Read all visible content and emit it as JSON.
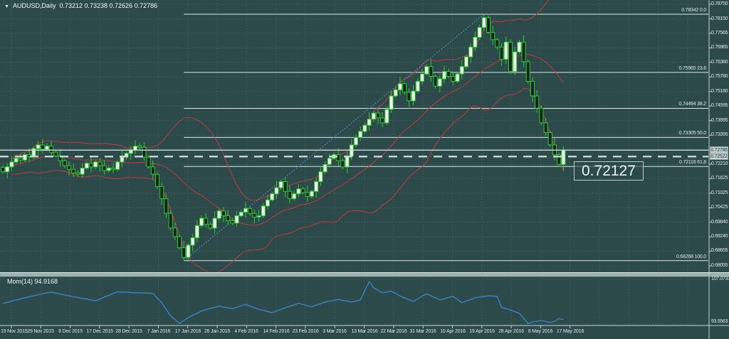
{
  "window": {
    "collapse_icon": "▼",
    "symbol_label": "AUDUSD,Daily",
    "ohlc_text": "0.73212 0.73238 0.72626 0.72786"
  },
  "colors": {
    "background": "#2c4a4a",
    "grid": "#466663",
    "candle_line": "#2fcc2f",
    "bull_fill": "#f4fff4",
    "bear_fill": "#0e2222",
    "band": "#c13b3b",
    "fib_line": "#dde8e8",
    "trend": "#4f9bca",
    "momentum_line": "#3a80bd",
    "silver": "#c5d2d2",
    "axis_text": "#dce8e8"
  },
  "chart_data": {
    "type": "candlestick",
    "title": "AUDUSD,Daily",
    "last_ohlc": {
      "open": "0.73212",
      "high": "0.73238",
      "low": "0.72626",
      "close": "0.72786"
    },
    "big_price_label": {
      "text": "0.72127",
      "price": 0.72127
    },
    "y_axis": {
      "ticks": [
        {
          "label": "0.78750",
          "price": 0.7875
        },
        {
          "label": "0.78150",
          "price": 0.7815
        },
        {
          "label": "0.77565",
          "price": 0.77565
        },
        {
          "label": "0.76965",
          "price": 0.76965
        },
        {
          "label": "0.76380",
          "price": 0.7638
        },
        {
          "label": "0.75780",
          "price": 0.7578
        },
        {
          "label": "0.75180",
          "price": 0.7518
        },
        {
          "label": "0.74595",
          "price": 0.74595
        },
        {
          "label": "0.73995",
          "price": 0.73995
        },
        {
          "label": "0.73395",
          "price": 0.73395
        },
        {
          "label": "0.72210",
          "price": 0.7221
        },
        {
          "label": "0.71625",
          "price": 0.71625
        },
        {
          "label": "0.71025",
          "price": 0.71025
        },
        {
          "label": "0.70425",
          "price": 0.70425
        },
        {
          "label": "0.69840",
          "price": 0.6984
        },
        {
          "label": "0.69240",
          "price": 0.6924
        },
        {
          "label": "0.68655",
          "price": 0.68655
        },
        {
          "label": "0.68055",
          "price": 0.68055
        }
      ]
    },
    "price_marker_boxes": [
      {
        "label": "0.72786",
        "price": 0.72786,
        "line_style": "solid"
      },
      {
        "label": "0.72522",
        "price": 0.72522,
        "line_style": "dashed"
      }
    ],
    "fibonacci": {
      "low": 0.68268,
      "high": 0.78342,
      "levels": [
        {
          "label": "0.78342 0.0",
          "price": 0.78342
        },
        {
          "label": "0.75965 23.6",
          "price": 0.75965
        },
        {
          "label": "0.74494 38.2",
          "price": 0.74494
        },
        {
          "label": "0.73305 50.0",
          "price": 0.73305
        },
        {
          "label": "0.72116 61.8",
          "price": 0.72116
        },
        {
          "label": "0.68268 100.0",
          "price": 0.68268
        }
      ]
    },
    "x_axis": {
      "labels": [
        "19 Nov 2015",
        "29 Nov 2015",
        "8 Dec 2015",
        "17 Dec 2015",
        "28 Dec 2015",
        "7 Jan 2016",
        "17 Jan 2016",
        "26 Jan 2016",
        "4 Feb 2016",
        "14 Feb 2016",
        "23 Feb 2016",
        "3 Mar 2016",
        "13 Mar 2016",
        "22 Mar 2016",
        "31 Mar 2016",
        "10 Apr 2016",
        "19 Apr 2016",
        "28 Apr 2016",
        "8 May 2016",
        "17 May 2016"
      ]
    },
    "closes": [
      0.719,
      0.721,
      0.723,
      0.7245,
      0.7238,
      0.726,
      0.7252,
      0.7285,
      0.73,
      0.7282,
      0.7295,
      0.727,
      0.7255,
      0.7235,
      0.7215,
      0.72,
      0.7185,
      0.718,
      0.7205,
      0.7225,
      0.721,
      0.723,
      0.7215,
      0.7195,
      0.7205,
      0.72,
      0.723,
      0.725,
      0.7265,
      0.728,
      0.7295,
      0.729,
      0.725,
      0.721,
      0.718,
      0.713,
      0.708,
      0.702,
      0.696,
      0.6925,
      0.688,
      0.684,
      0.689,
      0.692,
      0.697,
      0.7,
      0.6975,
      0.696,
      0.7,
      0.703,
      0.701,
      0.699,
      0.698,
      0.701,
      0.7025,
      0.704,
      0.702,
      0.7005,
      0.701,
      0.705,
      0.7075,
      0.71,
      0.7125,
      0.715,
      0.711,
      0.708,
      0.71,
      0.712,
      0.7105,
      0.709,
      0.711,
      0.715,
      0.719,
      0.722,
      0.7245,
      0.726,
      0.7235,
      0.721,
      0.7255,
      0.73,
      0.733,
      0.7355,
      0.738,
      0.7405,
      0.743,
      0.741,
      0.739,
      0.7445,
      0.75,
      0.7525,
      0.755,
      0.7515,
      0.748,
      0.752,
      0.756,
      0.759,
      0.762,
      0.758,
      0.754,
      0.757,
      0.76,
      0.758,
      0.756,
      0.759,
      0.762,
      0.766,
      0.77,
      0.774,
      0.778,
      0.782,
      0.776,
      0.773,
      0.77,
      0.765,
      0.772,
      0.76,
      0.768,
      0.772,
      0.764,
      0.756,
      0.75,
      0.745,
      0.739,
      0.735,
      0.73,
      0.726,
      0.722,
      0.7279
    ],
    "momentum": {
      "name_label": "Mom(14) 94.9168",
      "scale_top": "107.0733",
      "scale_bottom": "93.5563",
      "values": [
        99.8,
        100.1,
        100.5,
        100.8,
        101.2,
        101.5,
        101.8,
        102.1,
        102.4,
        102.7,
        103.0,
        103.2,
        102.9,
        102.6,
        102.3,
        102.1,
        101.8,
        101.6,
        101.3,
        101.1,
        100.8,
        100.6,
        101.1,
        101.7,
        102.2,
        102.8,
        103.3,
        103.2,
        103.2,
        103.1,
        103.0,
        103.0,
        102.9,
        102.9,
        102.8,
        101.4,
        100.0,
        98.0,
        96.0,
        94.9,
        93.8,
        94.6,
        95.5,
        96.2,
        96.8,
        97.5,
        97.9,
        98.3,
        98.6,
        99.0,
        98.7,
        98.5,
        98.2,
        98.6,
        99.1,
        99.5,
        99.0,
        98.5,
        98.0,
        97.7,
        97.3,
        97.0,
        97.5,
        98.0,
        98.5,
        98.9,
        99.4,
        99.8,
        99.5,
        99.1,
        98.8,
        99.3,
        99.7,
        100.2,
        100.5,
        100.7,
        101.0,
        100.7,
        100.5,
        100.2,
        100.5,
        100.8,
        103.6,
        106.4,
        104.5,
        103.8,
        103.0,
        103.3,
        103.5,
        102.8,
        102.0,
        101.5,
        100.9,
        100.4,
        101.2,
        102.0,
        102.7,
        102.1,
        101.5,
        100.9,
        101.2,
        101.6,
        101.9,
        101.0,
        100.0,
        100.5,
        101.0,
        101.5,
        101.7,
        101.9,
        102.1,
        102.0,
        101.9,
        98.6,
        98.2,
        97.8,
        97.3,
        96.8,
        95.3,
        93.7,
        94.2,
        94.4,
        94.6,
        94.3,
        94.0,
        94.4,
        95.2,
        94.92
      ]
    }
  }
}
